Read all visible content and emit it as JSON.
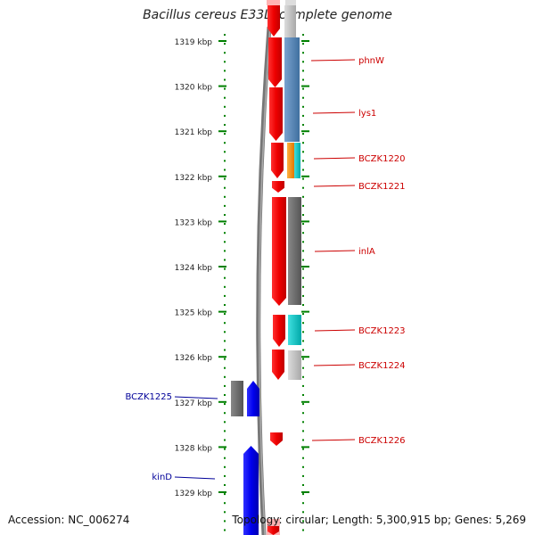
{
  "title": "Bacillus cereus E33L, complete genome",
  "footer": {
    "accession": "Accession: NC_006274",
    "topology": "Topology: circular; Length: 5,300,915 bp; Genes: 5,269"
  },
  "colors": {
    "forward_cds": "#ee0000",
    "reverse_cds": "#0000ee",
    "forward_label": "#cc0000",
    "reverse_label": "#000099",
    "tick": "#008000",
    "backbone": "#777777"
  },
  "ticks": [
    {
      "label": "1319 kbp"
    },
    {
      "label": "1320 kbp"
    },
    {
      "label": "1321 kbp"
    },
    {
      "label": "1322 kbp"
    },
    {
      "label": "1323 kbp"
    },
    {
      "label": "1324 kbp"
    },
    {
      "label": "1325 kbp"
    },
    {
      "label": "1326 kbp"
    },
    {
      "label": "1327 kbp"
    },
    {
      "label": "1328 kbp"
    },
    {
      "label": "1329 kbp"
    }
  ],
  "forward_genes": [
    {
      "name": "phnW"
    },
    {
      "name": "lys1"
    },
    {
      "name": "BCZK1220"
    },
    {
      "name": "BCZK1221"
    },
    {
      "name": "inlA"
    },
    {
      "name": "BCZK1223"
    },
    {
      "name": "BCZK1224"
    },
    {
      "name": "BCZK1226"
    }
  ],
  "reverse_genes": [
    {
      "name": "BCZK1225"
    },
    {
      "name": "kinD"
    }
  ]
}
